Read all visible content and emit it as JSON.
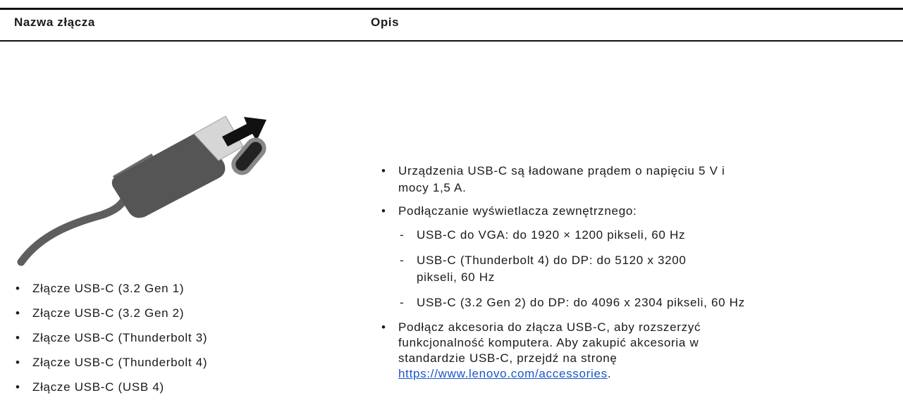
{
  "table": {
    "header": [
      "Nazwa złącza",
      "Opis"
    ],
    "connectors": [
      "Złącze USB-C (3.2 Gen 1)",
      "Złącze USB-C (3.2 Gen 2)",
      "Złącze USB-C (Thunderbolt 3)",
      "Złącze USB-C (Thunderbolt 4)",
      "Złącze USB-C (USB 4)"
    ],
    "description": [
      {
        "text": "Urządzenia USB-C są ładowane prądem o napięciu 5 V i mocy 1,5 A."
      },
      {
        "text": "Podłączanie wyświetlacza zewnętrznego:",
        "subitems": [
          "USB-C do VGA: do 1920 × 1200 pikseli, 60 Hz",
          "USB-C (Thunderbolt 4) do DP: do 5120 x 3200 pikseli, 60 Hz",
          "USB-C (3.2 Gen 2) do DP: do 4096 x 2304 pikseli, 60 Hz"
        ]
      },
      {
        "text": "Podłącz akcesoria do złącza USB-C, aby rozszerzyć funkcjonalność komputera. Aby zakupić akcesoria w standardzie USB-C, przejdź na stronę ",
        "link": "https://www.lenovo.com/accessories",
        "end": "."
      }
    ]
  }
}
